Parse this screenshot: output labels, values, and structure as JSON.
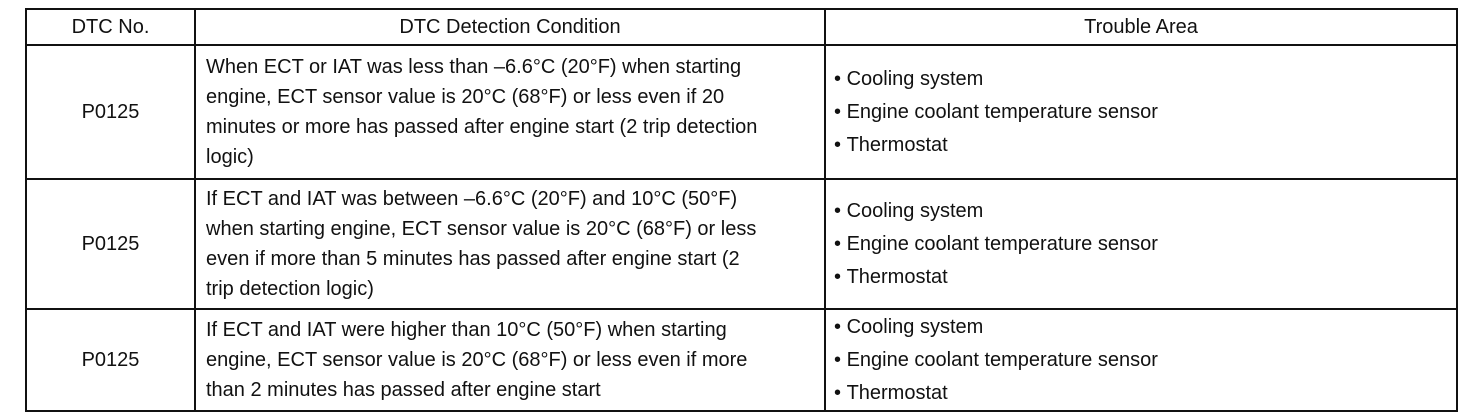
{
  "table": {
    "headers": [
      "DTC No.",
      "DTC Detection Condition",
      "Trouble Area"
    ],
    "rows": [
      {
        "dtc": "P0125",
        "condition": [
          "When ECT or IAT was less than –6.6°C (20°F) when starting",
          "engine, ECT sensor value is 20°C (68°F) or less even if 20",
          "minutes or more has passed after engine start (2 trip detection",
          "logic)"
        ],
        "trouble_areas": [
          "Cooling system",
          "Engine coolant temperature sensor",
          "Thermostat"
        ]
      },
      {
        "dtc": "P0125",
        "condition": [
          "If ECT and IAT was between –6.6°C (20°F) and 10°C (50°F)",
          "when starting engine, ECT sensor value is 20°C (68°F) or less",
          "even if more than 5 minutes has passed after engine start (2",
          "trip detection logic)"
        ],
        "trouble_areas": [
          "Cooling system",
          "Engine coolant temperature sensor",
          "Thermostat"
        ]
      },
      {
        "dtc": "P0125",
        "condition": [
          "If ECT and IAT were higher than 10°C (50°F) when starting",
          "engine, ECT sensor value is 20°C (68°F) or less even if more",
          "than 2 minutes has passed after engine start"
        ],
        "trouble_areas": [
          "Cooling system",
          "Engine coolant temperature sensor",
          "Thermostat"
        ]
      }
    ]
  }
}
